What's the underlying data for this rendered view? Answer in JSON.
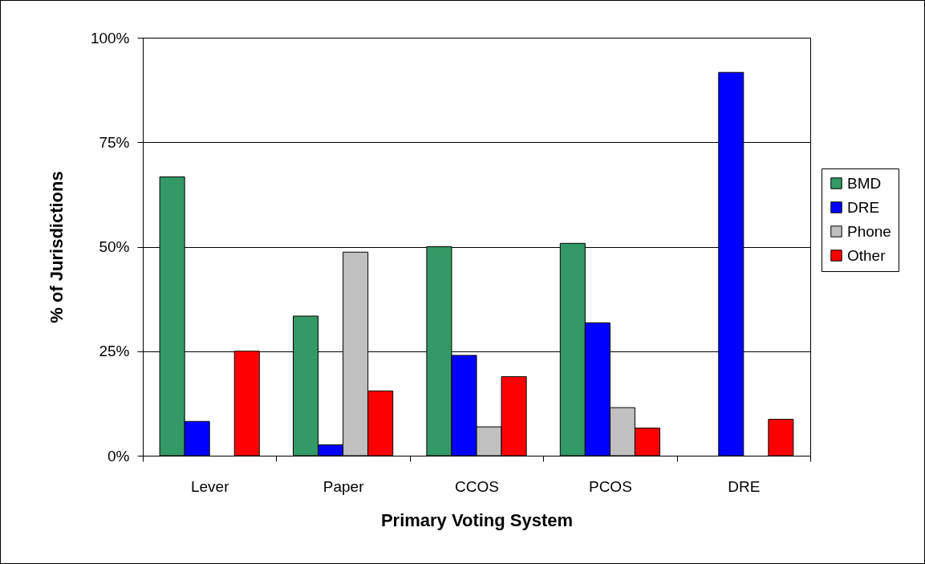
{
  "chart_data": {
    "type": "bar",
    "xlabel": "Primary Voting System",
    "ylabel": "% of Jurisdictions",
    "categories": [
      "Lever",
      "Paper",
      "CCOS",
      "PCOS",
      "DRE"
    ],
    "series": [
      {
        "name": "BMD",
        "color": "#339966",
        "values": [
          66.7,
          33.4,
          50,
          50.8,
          null
        ]
      },
      {
        "name": "DRE",
        "color": "#0000ff",
        "values": [
          8.2,
          2.6,
          24.0,
          31.8,
          91.7
        ]
      },
      {
        "name": "Phone",
        "color": "#c0c0c0",
        "values": [
          null,
          48.7,
          6.9,
          11.5,
          null
        ]
      },
      {
        "name": "Other",
        "color": "#ff0000",
        "values": [
          25,
          15.5,
          18.9,
          6.6,
          8.7
        ]
      }
    ],
    "ylim": [
      0,
      100
    ],
    "yticks": [
      {
        "value": 0,
        "label": "0%"
      },
      {
        "value": 25,
        "label": "25%"
      },
      {
        "value": 50,
        "label": "50%"
      },
      {
        "value": 75,
        "label": "75%"
      },
      {
        "value": 100,
        "label": "100%"
      }
    ],
    "grid": "y",
    "legend": "right"
  }
}
